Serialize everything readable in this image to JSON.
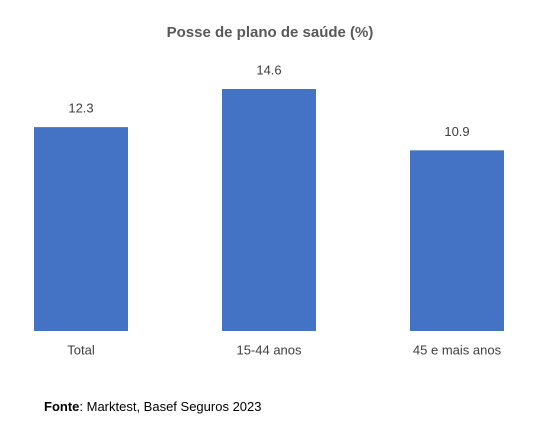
{
  "chart_data": {
    "type": "bar",
    "title": "Posse de plano de saúde (%)",
    "categories": [
      "Total",
      "15-44 anos",
      "45 e mais anos"
    ],
    "values": [
      12.3,
      14.6,
      10.9
    ],
    "color": "#4472c4",
    "source_label": "Fonte",
    "source": ": Marktest, Basef Seguros 2023"
  }
}
